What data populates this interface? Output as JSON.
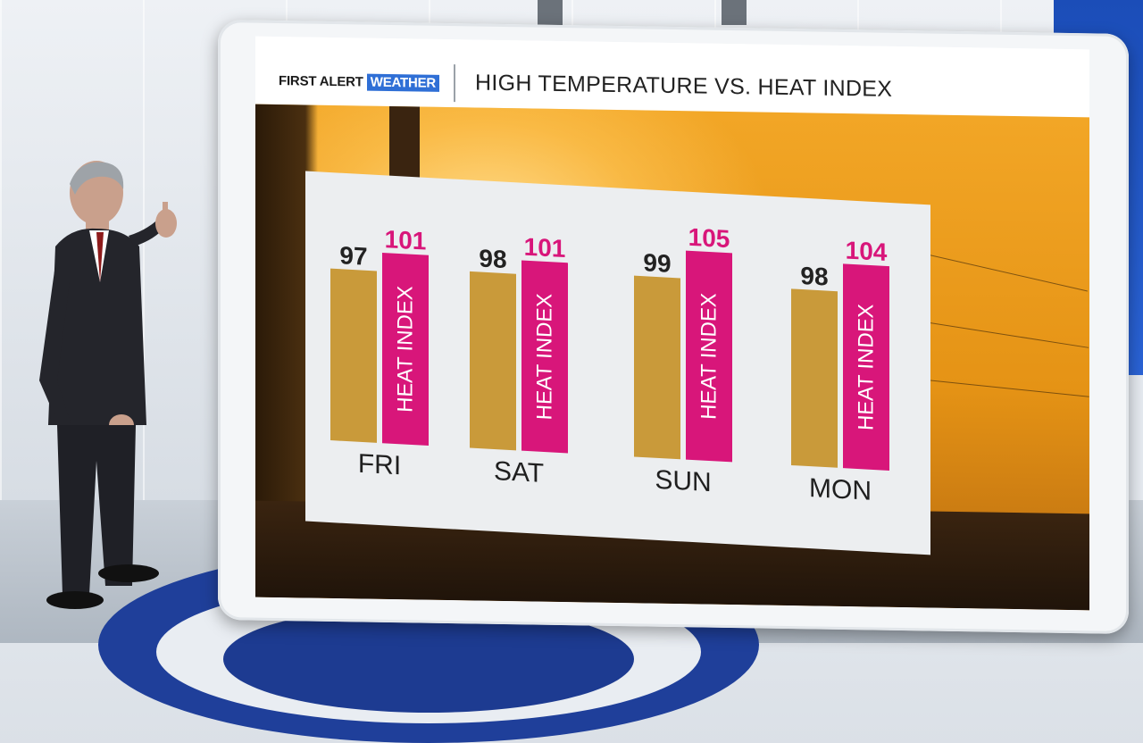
{
  "header": {
    "brand_first": "FIRST ALERT",
    "brand_weather": "WEATHER",
    "title": "HIGH TEMPERATURE VS. HEAT INDEX"
  },
  "colors": {
    "high_temp_bar": "#c99a3a",
    "heat_index_bar": "#d8167a",
    "heat_index_value": "#d8167a",
    "high_temp_value": "#222222",
    "brand_blue": "#2f6fd6"
  },
  "chart_data": {
    "type": "bar",
    "categories": [
      "FRI",
      "SAT",
      "SUN",
      "MON"
    ],
    "series": [
      {
        "values": [
          97,
          98,
          99,
          98
        ]
      },
      {
        "name": "HEAT INDEX",
        "values": [
          101,
          101,
          105,
          104
        ]
      }
    ],
    "ylim": [
      60,
      110
    ],
    "grid": false,
    "legend": "none"
  }
}
